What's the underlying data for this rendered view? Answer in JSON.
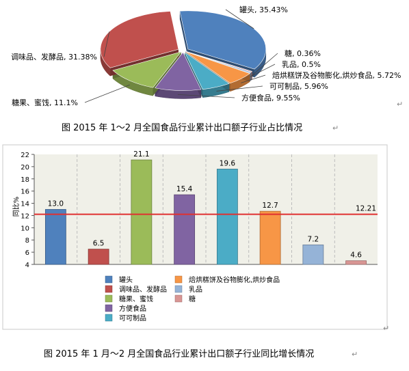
{
  "pie_caption": "图   2015 年 1～2 月全国食品行业累计出口额子行业占比情况",
  "bar_caption": "图   2015 年 1 月～2 月全国食品行业累计出口额子行业同比增长情况",
  "paragraph_mark": "↵",
  "chart_data": [
    {
      "type": "pie",
      "slices": [
        {
          "label": "罐头",
          "value": 35.43,
          "display": "罐头, 35.43%",
          "color": "#4f81bd"
        },
        {
          "label": "糖",
          "value": 0.36,
          "display": "糖, 0.36%",
          "color": "#d99694"
        },
        {
          "label": "乳品",
          "value": 0.5,
          "display": "乳品, 0.5%",
          "color": "#95b3d7"
        },
        {
          "label": "焙烘糕饼及谷物膨化,烘炒食品",
          "value": 5.72,
          "display": "焙烘糕饼及谷物膨化,烘炒食品, 5.72%",
          "color": "#f79646"
        },
        {
          "label": "可可制品",
          "value": 5.96,
          "display": "可可制品, 5.96%",
          "color": "#4bacc6"
        },
        {
          "label": "方便食品",
          "value": 9.55,
          "display": "方便食品, 9.55%",
          "color": "#8064a2"
        },
        {
          "label": "糖果、蜜饯",
          "value": 11.1,
          "display": "糖果、蜜饯, 11.1%",
          "color": "#9bbb59"
        },
        {
          "label": "调味品、发酵品",
          "value": 31.38,
          "display": "调味品、发酵品, 31.38%",
          "color": "#c0504d"
        }
      ]
    },
    {
      "type": "bar",
      "ylabel": "同比%",
      "ylim": [
        4,
        22
      ],
      "yticks": [
        "4",
        "6",
        "8",
        "10",
        "12",
        "14",
        "16",
        "18",
        "20",
        "22"
      ],
      "grid": "vertical dashed",
      "reference_line": {
        "value": 12.21,
        "label": "12.21",
        "color": "#e03030"
      },
      "bars": [
        {
          "label": "罐头",
          "value": 13.0,
          "display": "13.0",
          "color": "#4f81bd"
        },
        {
          "label": "调味品、发酵品",
          "value": 6.5,
          "display": "6.5",
          "color": "#c0504d"
        },
        {
          "label": "糖果、蜜饯",
          "value": 21.1,
          "display": "21.1",
          "color": "#9bbb59"
        },
        {
          "label": "方便食品",
          "value": 15.4,
          "display": "15.4",
          "color": "#8064a2"
        },
        {
          "label": "可可制品",
          "value": 19.6,
          "display": "19.6",
          "color": "#4bacc6"
        },
        {
          "label": "焙烘糕饼及谷物膨化,烘炒食品",
          "value": 12.7,
          "display": "12.7",
          "color": "#f79646"
        },
        {
          "label": "乳品",
          "value": 7.2,
          "display": "7.2",
          "color": "#95b3d7"
        },
        {
          "label": "糖",
          "value": 4.6,
          "display": "4.6",
          "color": "#d99694"
        }
      ],
      "legend": {
        "placement": "bottom",
        "left": [
          {
            "label": "罐头",
            "color": "#4f81bd"
          },
          {
            "label": "调味品、发酵品",
            "color": "#c0504d"
          },
          {
            "label": "糖果、蜜饯",
            "color": "#9bbb59"
          },
          {
            "label": "方便食品",
            "color": "#8064a2"
          },
          {
            "label": "可可制品",
            "color": "#4bacc6"
          }
        ],
        "right": [
          {
            "label": "焙烘糕饼及谷物膨化,烘炒食品",
            "color": "#f79646"
          },
          {
            "label": "乳品",
            "color": "#95b3d7"
          },
          {
            "label": "糖",
            "color": "#d99694"
          }
        ]
      }
    }
  ]
}
